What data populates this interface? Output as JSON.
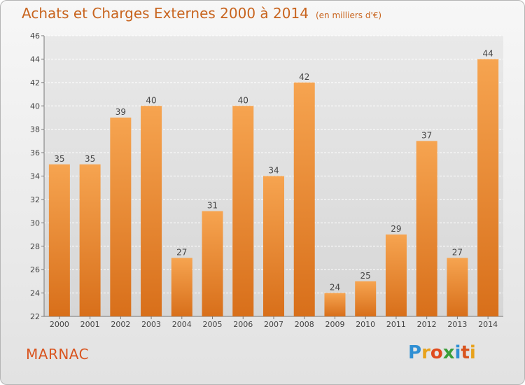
{
  "title": "Achats et Charges Externes 2000 à 2014",
  "unit": "(en milliers d'€)",
  "place": "MARNAC",
  "logo": {
    "letters": [
      "P",
      "r",
      "o",
      "x",
      "i",
      "t",
      "i"
    ],
    "colors": [
      "#2f8fd3",
      "#e8a21c",
      "#e04a1e",
      "#3a9e3a",
      "#2f8fd3",
      "#d9541e",
      "#e8a21c"
    ]
  },
  "colors": {
    "title": "#c8641e",
    "bar_top": "#f6a450",
    "bar_bottom": "#d86f1a",
    "place": "#d9541e"
  },
  "chart_data": {
    "type": "bar",
    "categories": [
      "2000",
      "2001",
      "2002",
      "2003",
      "2004",
      "2005",
      "2006",
      "2007",
      "2008",
      "2009",
      "2010",
      "2011",
      "2012",
      "2013",
      "2014"
    ],
    "values": [
      35,
      35,
      39,
      40,
      27,
      31,
      40,
      34,
      42,
      24,
      25,
      29,
      37,
      27,
      44
    ],
    "ylim": [
      22,
      46
    ],
    "yticks": [
      22,
      24,
      26,
      28,
      30,
      32,
      34,
      36,
      38,
      40,
      42,
      44,
      46
    ],
    "grid": true,
    "legend": "none"
  }
}
